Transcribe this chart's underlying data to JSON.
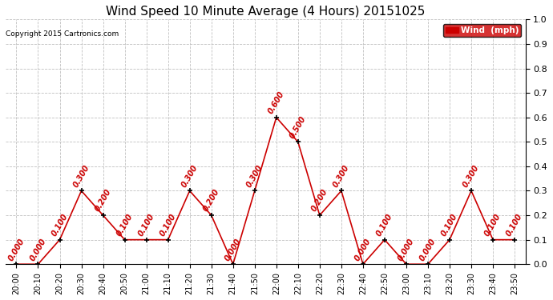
{
  "title": "Wind Speed 10 Minute Average (4 Hours) 20151025",
  "copyright": "Copyright 2015 Cartronics.com",
  "legend_label": "Wind  (mph)",
  "x_labels": [
    "20:00",
    "20:10",
    "20:20",
    "20:30",
    "20:40",
    "20:50",
    "21:00",
    "21:10",
    "21:20",
    "21:30",
    "21:40",
    "21:50",
    "22:00",
    "22:10",
    "22:20",
    "22:30",
    "22:40",
    "22:50",
    "23:00",
    "23:10",
    "23:20",
    "23:30",
    "23:40",
    "23:50"
  ],
  "wind_data": [
    0.0,
    0.0,
    0.1,
    0.3,
    0.2,
    0.1,
    0.1,
    0.1,
    0.3,
    0.2,
    0.0,
    0.3,
    0.6,
    0.5,
    0.2,
    0.3,
    0.0,
    0.1,
    0.0,
    0.0,
    0.1,
    0.3,
    0.1,
    0.1
  ],
  "line_color": "#cc0000",
  "marker_color": "#000000",
  "label_color": "#cc0000",
  "legend_bg": "#cc0000",
  "legend_text_color": "#ffffff",
  "ylim": [
    0.0,
    1.0
  ],
  "yticks": [
    0.0,
    0.1,
    0.2,
    0.3,
    0.4,
    0.5,
    0.6,
    0.7,
    0.8,
    0.9,
    1.0
  ],
  "grid_color": "#c0c0c0",
  "background_color": "#ffffff",
  "title_fontsize": 11,
  "label_fontsize": 7,
  "tick_fontsize": 7,
  "ytick_fontsize": 8
}
